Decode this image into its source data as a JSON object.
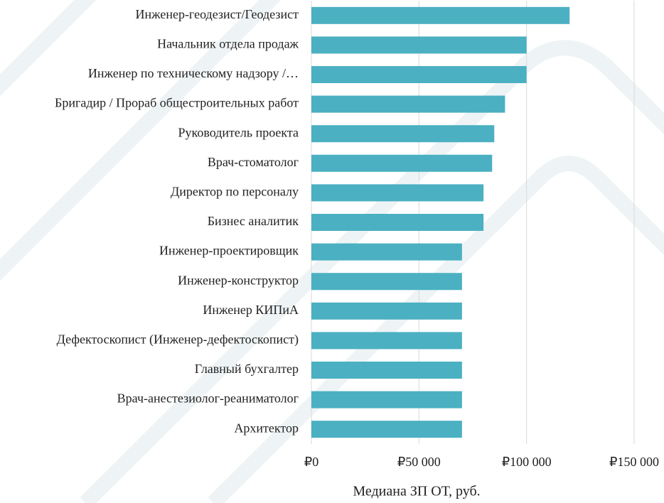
{
  "chart_data": {
    "type": "bar",
    "orientation": "horizontal",
    "categories": [
      "Инженер-геодезист/Геодезист",
      "Начальник отдела продаж",
      "Инженер по техническому надзору /…",
      "Бригадир / Прораб общестроительных работ",
      "Руководитель проекта",
      "Врач-стоматолог",
      "Директор по персоналу",
      "Бизнес аналитик",
      "Инженер-проектировщик",
      "Инженер-конструктор",
      "Инженер КИПиА",
      "Дефектоскопист (Инженер-дефектоскопист)",
      "Главный бухгалтер",
      "Врач-анестезиолог-реаниматолог",
      "Архитектор"
    ],
    "values": [
      120000,
      100000,
      100000,
      90000,
      85000,
      84000,
      80000,
      80000,
      70000,
      70000,
      70000,
      70000,
      70000,
      70000,
      70000
    ],
    "color": "#4bb0c2",
    "xlim": [
      0,
      150000
    ],
    "xticks": [
      {
        "value": 0,
        "label": "₽0"
      },
      {
        "value": 50000,
        "label": "₽50 000"
      },
      {
        "value": 100000,
        "label": "₽100 000"
      },
      {
        "value": 150000,
        "label": "₽150 000"
      }
    ],
    "xlabel": "Медиана ЗП ОТ, руб.",
    "grid": true
  }
}
